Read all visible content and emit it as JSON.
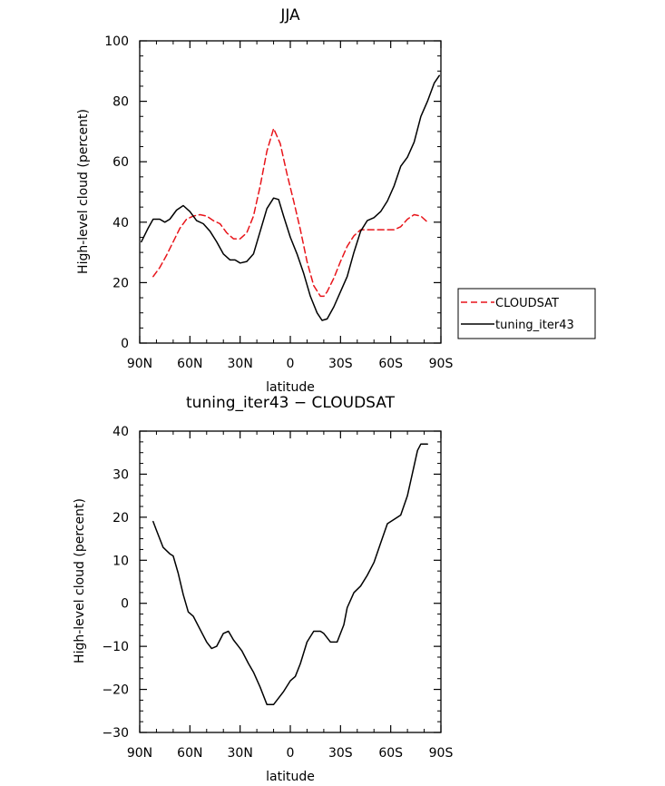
{
  "chart_data": [
    {
      "type": "line",
      "title": "JJA",
      "xlabel": "latitude",
      "ylabel": "High-level cloud (percent)",
      "xlim": [
        90,
        -90
      ],
      "ylim": [
        0,
        100
      ],
      "x_ticks": [
        90,
        60,
        30,
        0,
        -30,
        -60,
        -90
      ],
      "x_tick_labels": [
        "90N",
        "60N",
        "30N",
        "0",
        "30S",
        "60S",
        "90S"
      ],
      "y_ticks": [
        0,
        20,
        40,
        60,
        80,
        100
      ],
      "y_tick_labels": [
        "0",
        "20",
        "40",
        "60",
        "80",
        "100"
      ],
      "grid": false,
      "legend": "right",
      "series": [
        {
          "name": "CLOUDSAT",
          "color": "#e8141a",
          "dash": "dashed",
          "x": [
            82,
            78,
            74,
            70,
            66,
            62,
            58,
            54,
            50,
            46,
            42,
            38,
            34,
            30,
            26,
            22,
            18,
            14,
            10,
            6,
            2,
            -2,
            -6,
            -10,
            -14,
            -18,
            -20,
            -22,
            -26,
            -30,
            -34,
            -38,
            -42,
            -46,
            -50,
            -54,
            -58,
            -62,
            -66,
            -70,
            -74,
            -78,
            -82
          ],
          "y": [
            22,
            25,
            29,
            33.5,
            38,
            41,
            42,
            42.5,
            42,
            40.5,
            39.5,
            36.5,
            34.5,
            34.5,
            36.5,
            42,
            52,
            63.5,
            71,
            66,
            56,
            47,
            37.5,
            27,
            19,
            15.5,
            15.5,
            17,
            21.5,
            27,
            32,
            35.5,
            37.5,
            37.5,
            37.5,
            37.5,
            37.5,
            37.5,
            38.5,
            41,
            42.5,
            42,
            40
          ]
        },
        {
          "name": "tuning_iter43",
          "color": "#000000",
          "dash": "solid",
          "x": [
            89,
            85,
            82,
            78,
            75,
            72,
            68,
            64,
            60,
            56,
            52,
            48,
            44,
            40,
            36,
            33,
            30,
            26,
            22,
            18,
            14,
            10,
            7,
            4,
            0,
            -4,
            -8,
            -12,
            -16,
            -19,
            -22,
            -26,
            -30,
            -34,
            -38,
            -42,
            -46,
            -50,
            -54,
            -58,
            -62,
            -66,
            -70,
            -74,
            -78,
            -82,
            -86,
            -89
          ],
          "y": [
            33.5,
            38,
            41,
            41,
            40,
            41,
            44,
            45.5,
            43.5,
            40.5,
            39.5,
            37,
            33.5,
            29.5,
            27.5,
            27.5,
            26.5,
            27,
            29.5,
            37,
            44.5,
            48,
            47.5,
            42,
            35,
            29.5,
            23,
            15.5,
            10,
            7.5,
            8,
            12,
            17,
            22,
            30,
            37,
            40.5,
            41.5,
            43.5,
            47,
            52,
            58.5,
            61.5,
            66.5,
            75,
            80,
            86,
            88.5
          ]
        }
      ]
    },
    {
      "type": "line",
      "title": "tuning_iter43 − CLOUDSAT",
      "xlabel": "latitude",
      "ylabel": "High-level cloud (percent)",
      "xlim": [
        90,
        -90
      ],
      "ylim": [
        -30,
        40
      ],
      "x_ticks": [
        90,
        60,
        30,
        0,
        -30,
        -60,
        -90
      ],
      "x_tick_labels": [
        "90N",
        "60N",
        "30N",
        "0",
        "30S",
        "60S",
        "90S"
      ],
      "y_ticks": [
        -30,
        -20,
        -10,
        0,
        10,
        20,
        30,
        40
      ],
      "y_tick_labels": [
        "−30",
        "−20",
        "−10",
        "0",
        "10",
        "20",
        "30",
        "40"
      ],
      "grid": false,
      "series": [
        {
          "color": "#000000",
          "dash": "solid",
          "x": [
            82,
            80,
            76,
            72,
            70,
            67,
            64,
            61,
            58,
            54,
            50,
            47,
            44,
            40,
            37,
            34,
            31,
            29,
            25,
            22,
            18,
            14,
            10,
            7,
            4,
            0,
            -3,
            -6,
            -10,
            -14,
            -18,
            -20,
            -24,
            -28,
            -32,
            -34,
            -38,
            -42,
            -46,
            -50,
            -54,
            -58,
            -62,
            -66,
            -70,
            -72,
            -74,
            -76,
            -78,
            -80,
            -82
          ],
          "y": [
            19,
            17,
            13,
            11.5,
            11,
            7,
            2,
            -2,
            -3,
            -6,
            -9,
            -10.5,
            -10,
            -7,
            -6.5,
            -8.5,
            -10,
            -11,
            -14,
            -16,
            -19.5,
            -23.5,
            -23.5,
            -22,
            -20.5,
            -18,
            -17,
            -14,
            -9,
            -6.5,
            -6.5,
            -7,
            -9,
            -9,
            -5,
            -1,
            2.5,
            4,
            6.5,
            9.5,
            14,
            18.5,
            19.5,
            20.5,
            25,
            28.5,
            32,
            35.5,
            37,
            37,
            37
          ]
        }
      ]
    }
  ]
}
